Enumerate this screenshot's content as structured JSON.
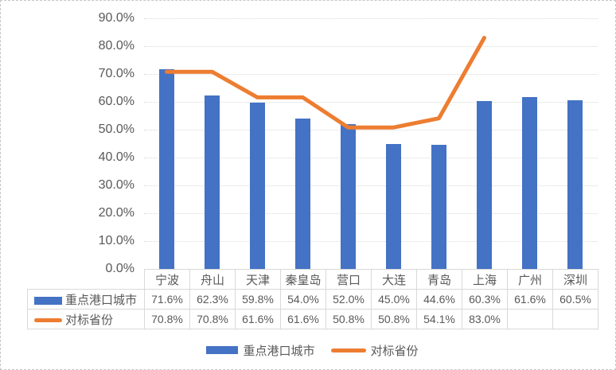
{
  "chart_data": {
    "type": "bar",
    "subtype": "combo-bar-line",
    "title": "",
    "categories": [
      "宁波",
      "舟山",
      "天津",
      "秦皇岛",
      "营口",
      "大连",
      "青岛",
      "上海",
      "广州",
      "深圳"
    ],
    "series": [
      {
        "name": "重点港口城市",
        "type": "bar",
        "color": "#4472C4",
        "values": [
          71.6,
          62.3,
          59.8,
          54.0,
          52.0,
          45.0,
          44.6,
          60.3,
          61.6,
          60.5
        ]
      },
      {
        "name": "对标省份",
        "type": "line",
        "color": "#ED7D31",
        "values": [
          70.8,
          70.8,
          61.6,
          61.6,
          50.8,
          50.8,
          54.1,
          83.0,
          null,
          null
        ]
      }
    ],
    "value_labels": [
      [
        "71.6%",
        "62.3%",
        "59.8%",
        "54.0%",
        "52.0%",
        "45.0%",
        "44.6%",
        "60.3%",
        "61.6%",
        "60.5%"
      ],
      [
        "70.8%",
        "70.8%",
        "61.6%",
        "61.6%",
        "50.8%",
        "50.8%",
        "54.1%",
        "83.0%",
        "",
        ""
      ]
    ],
    "y_ticks": [
      "0.0%",
      "10.0%",
      "20.0%",
      "30.0%",
      "40.0%",
      "50.0%",
      "60.0%",
      "70.0%",
      "80.0%",
      "90.0%"
    ],
    "ylim": [
      0,
      90
    ],
    "grid": true,
    "data_table": true,
    "legend_position": "bottom"
  },
  "colors": {
    "bar": "#4472C4",
    "line": "#ED7D31",
    "gridline": "#D9D9D9",
    "table_border": "#D9D9D9",
    "text": "#595959"
  }
}
